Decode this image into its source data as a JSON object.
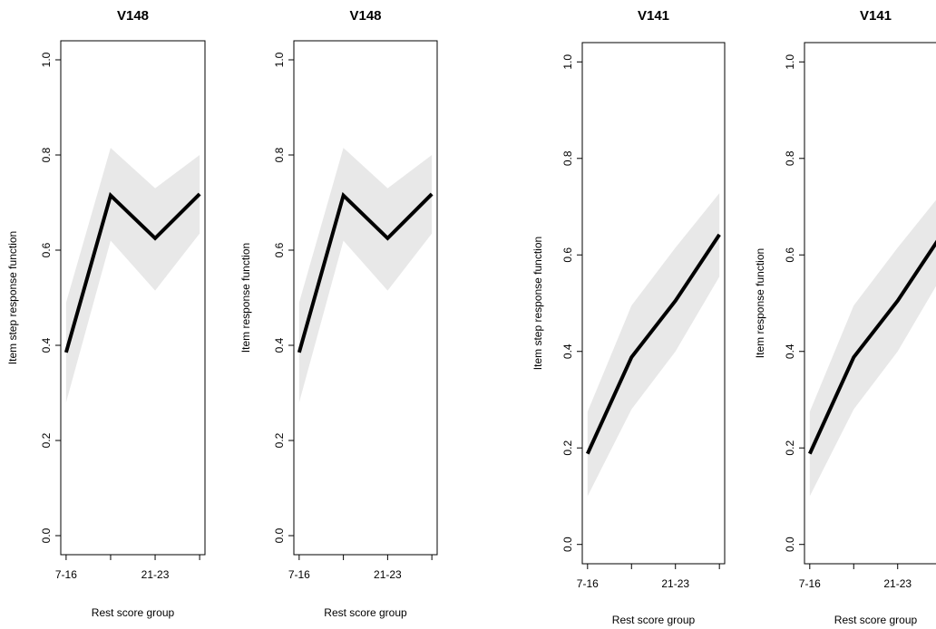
{
  "chart_data": [
    {
      "type": "line",
      "title": "V148",
      "xlabel": "Rest score group",
      "ylabel": "Item step response function",
      "ylim": [
        0,
        1
      ],
      "yticks": [
        "0.0",
        "0.2",
        "0.4",
        "0.6",
        "0.8",
        "1.0"
      ],
      "x_tick_labels": [
        "7-16",
        "",
        "21-23",
        ""
      ],
      "categories": [
        "7-16",
        "",
        "21-23",
        ""
      ],
      "series": [
        {
          "values": [
            0.385,
            0.715,
            0.625,
            0.718
          ],
          "lower": [
            0.28,
            0.62,
            0.515,
            0.635
          ],
          "upper": [
            0.49,
            0.815,
            0.73,
            0.8
          ]
        }
      ],
      "colors": {
        "line": "#000000",
        "band": "#e8e8e8"
      },
      "grid": false
    },
    {
      "type": "line",
      "title": "V148",
      "xlabel": "Rest score group",
      "ylabel": "Item response function",
      "ylim": [
        0,
        1
      ],
      "yticks": [
        "0.0",
        "0.2",
        "0.4",
        "0.6",
        "0.8",
        "1.0"
      ],
      "x_tick_labels": [
        "7-16",
        "",
        "21-23",
        ""
      ],
      "categories": [
        "7-16",
        "",
        "21-23",
        ""
      ],
      "series": [
        {
          "values": [
            0.385,
            0.715,
            0.625,
            0.718
          ],
          "lower": [
            0.28,
            0.62,
            0.515,
            0.635
          ],
          "upper": [
            0.49,
            0.815,
            0.73,
            0.8
          ]
        }
      ],
      "colors": {
        "line": "#000000",
        "band": "#e8e8e8"
      },
      "grid": false
    },
    {
      "type": "line",
      "title": "V141",
      "xlabel": "Rest score group",
      "ylabel": "Item step response function",
      "ylim": [
        0,
        1
      ],
      "yticks": [
        "0.0",
        "0.2",
        "0.4",
        "0.6",
        "0.8",
        "1.0"
      ],
      "x_tick_labels": [
        "7-16",
        "",
        "21-23",
        ""
      ],
      "categories": [
        "7-16",
        "",
        "21-23",
        ""
      ],
      "series": [
        {
          "values": [
            0.188,
            0.388,
            0.505,
            0.642
          ],
          "lower": [
            0.1,
            0.28,
            0.4,
            0.555
          ],
          "upper": [
            0.275,
            0.495,
            0.615,
            0.728
          ]
        }
      ],
      "colors": {
        "line": "#000000",
        "band": "#e8e8e8"
      },
      "grid": false
    },
    {
      "type": "line",
      "title": "V141",
      "xlabel": "Rest score group",
      "ylabel": "Item response function",
      "ylim": [
        0,
        1
      ],
      "yticks": [
        "0.0",
        "0.2",
        "0.4",
        "0.6",
        "0.8",
        "1.0"
      ],
      "x_tick_labels": [
        "7-16",
        "",
        "21-23",
        ""
      ],
      "categories": [
        "7-16",
        "",
        "21-23",
        ""
      ],
      "series": [
        {
          "values": [
            0.188,
            0.388,
            0.505,
            0.642
          ],
          "lower": [
            0.1,
            0.28,
            0.4,
            0.555
          ],
          "upper": [
            0.275,
            0.495,
            0.615,
            0.728
          ]
        }
      ],
      "colors": {
        "line": "#000000",
        "band": "#e8e8e8"
      },
      "grid": false
    }
  ]
}
